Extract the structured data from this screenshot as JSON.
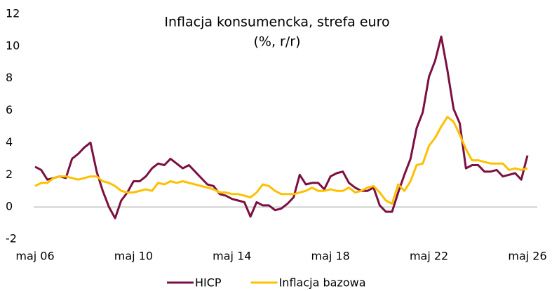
{
  "chart_data": {
    "type": "line",
    "title": "Inflacja konsumencka, strefa euro",
    "subtitle": "(%, r/r)",
    "categories": [
      "maj 06",
      null,
      null,
      null,
      null,
      null,
      null,
      null,
      null,
      null,
      null,
      null,
      null,
      null,
      null,
      null,
      "maj 10",
      null,
      null,
      null,
      null,
      null,
      null,
      null,
      null,
      null,
      null,
      null,
      null,
      null,
      null,
      null,
      "maj 14",
      null,
      null,
      null,
      null,
      null,
      null,
      null,
      null,
      null,
      null,
      null,
      null,
      null,
      null,
      null,
      "maj 18",
      null,
      null,
      null,
      null,
      null,
      null,
      null,
      null,
      null,
      null,
      null,
      null,
      null,
      null,
      null,
      "maj 22",
      null,
      null,
      null,
      null,
      null,
      null,
      null,
      null,
      null,
      null,
      null,
      null,
      null,
      null,
      null,
      "maj 26"
    ],
    "series": [
      {
        "name": "HICP",
        "color": "#7b1042",
        "values": [
          2.5,
          2.3,
          1.7,
          1.8,
          1.9,
          1.8,
          3.0,
          3.3,
          3.7,
          4.0,
          2.2,
          1.0,
          0.0,
          -0.7,
          0.4,
          0.9,
          1.6,
          1.6,
          1.9,
          2.4,
          2.7,
          2.6,
          3.0,
          2.7,
          2.4,
          2.6,
          2.2,
          1.8,
          1.4,
          1.3,
          0.8,
          0.7,
          0.5,
          0.4,
          0.3,
          -0.6,
          0.3,
          0.1,
          0.1,
          -0.2,
          -0.1,
          0.2,
          0.6,
          2.0,
          1.4,
          1.5,
          1.5,
          1.1,
          1.9,
          2.1,
          2.2,
          1.5,
          1.2,
          1.0,
          1.0,
          1.2,
          0.1,
          -0.3,
          -0.3,
          0.9,
          2.0,
          3.0,
          4.9,
          5.9,
          8.1,
          9.1,
          10.6,
          8.5,
          6.1,
          5.2,
          2.4,
          2.6,
          2.6,
          2.2,
          2.2,
          2.3,
          1.9,
          2.0,
          2.1,
          1.7,
          3.2
        ]
      },
      {
        "name": "Inflacja bazowa",
        "color": "#ffc000",
        "values": [
          1.3,
          1.5,
          1.5,
          1.8,
          1.9,
          1.9,
          1.8,
          1.7,
          1.8,
          1.9,
          1.9,
          1.6,
          1.5,
          1.3,
          1.0,
          0.9,
          0.9,
          1.0,
          1.1,
          1.0,
          1.5,
          1.4,
          1.6,
          1.5,
          1.6,
          1.5,
          1.4,
          1.3,
          1.2,
          1.1,
          0.9,
          0.9,
          0.8,
          0.8,
          0.7,
          0.6,
          0.9,
          1.4,
          1.3,
          1.0,
          0.8,
          0.8,
          0.8,
          0.9,
          1.0,
          1.2,
          1.0,
          1.0,
          1.1,
          1.0,
          1.0,
          1.2,
          0.9,
          1.0,
          1.2,
          1.3,
          0.9,
          0.4,
          0.2,
          1.4,
          1.0,
          1.6,
          2.6,
          2.7,
          3.8,
          4.3,
          5.0,
          5.6,
          5.3,
          4.5,
          3.6,
          2.9,
          2.9,
          2.8,
          2.7,
          2.7,
          2.7,
          2.3,
          2.4,
          2.3,
          2.4
        ]
      }
    ],
    "ylim": [
      -2,
      12
    ],
    "yticks": [
      -2,
      0,
      2,
      4,
      6,
      8,
      10,
      12
    ],
    "legend": "bottom"
  }
}
